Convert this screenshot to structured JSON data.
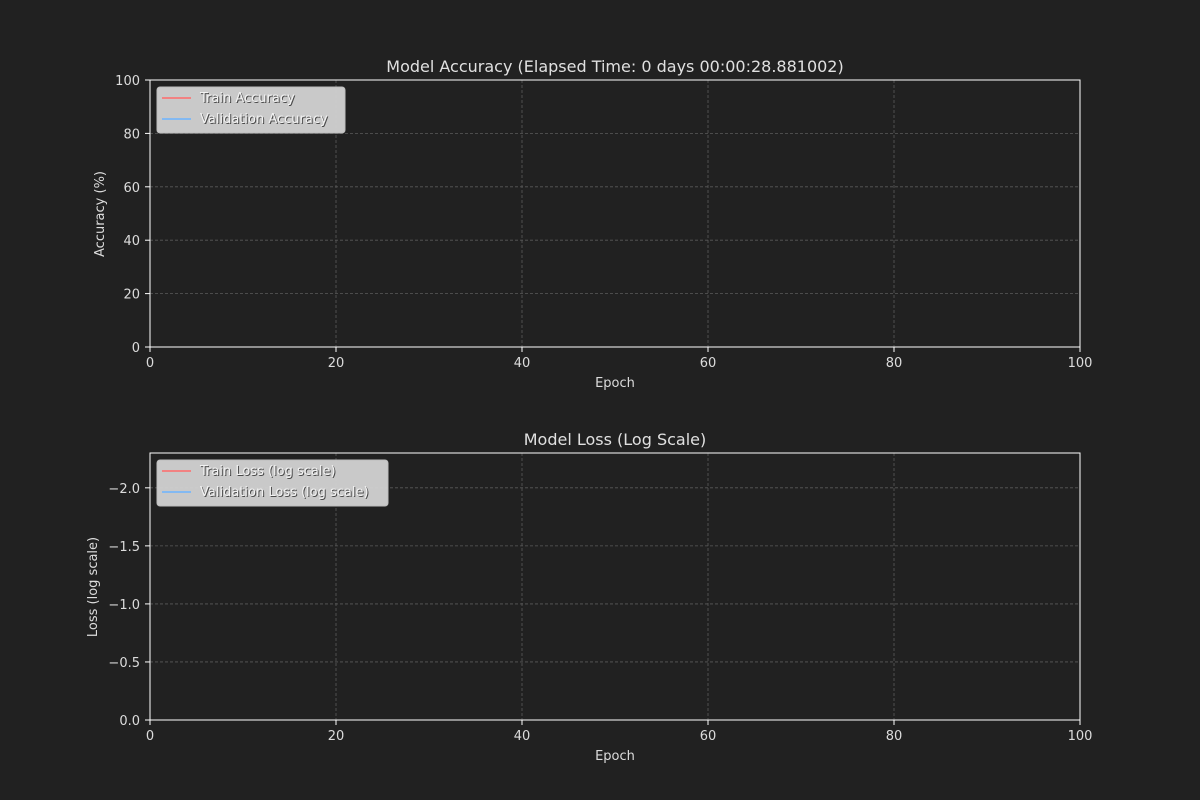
{
  "colors": {
    "background": "#212121",
    "axes_face": "#212121",
    "spine": "#ffffff",
    "grid": "#5a5a5a",
    "text": "#dcdcdc",
    "train": "#ff6b6b",
    "validation": "#6cb4ff",
    "legend_bg": "#d3d3d3"
  },
  "chart_data": [
    {
      "type": "line",
      "title": "Model Accuracy (Elapsed Time: 0 days 00:00:28.881002)",
      "xlabel": "Epoch",
      "ylabel": "Accuracy (%)",
      "xlim": [
        0,
        100
      ],
      "ylim": [
        0,
        100
      ],
      "xticks": [
        0,
        20,
        40,
        60,
        80,
        100
      ],
      "yticks": [
        0,
        20,
        40,
        60,
        80,
        100
      ],
      "xtick_labels": [
        "0",
        "20",
        "40",
        "60",
        "80",
        "100"
      ],
      "ytick_labels": [
        "0",
        "20",
        "40",
        "60",
        "80",
        "100"
      ],
      "grid": true,
      "legend_position": "upper-left",
      "series": [
        {
          "name": "Train Accuracy",
          "color": "#ff6b6b",
          "x": [],
          "y": []
        },
        {
          "name": "Validation Accuracy",
          "color": "#6cb4ff",
          "x": [],
          "y": []
        }
      ]
    },
    {
      "type": "line",
      "title": "Model Loss (Log Scale)",
      "xlabel": "Epoch",
      "ylabel": "Loss (log scale)",
      "xlim": [
        0,
        100
      ],
      "ylim": [
        0,
        -2.3
      ],
      "xticks": [
        0,
        20,
        40,
        60,
        80,
        100
      ],
      "yticks": [
        0,
        -0.5,
        -1.0,
        -1.5,
        -2.0
      ],
      "xtick_labels": [
        "0",
        "20",
        "40",
        "60",
        "80",
        "100"
      ],
      "ytick_labels": [
        "0.0",
        "−0.5",
        "−1.0",
        "−1.5",
        "−2.0"
      ],
      "grid": true,
      "legend_position": "upper-left",
      "series": [
        {
          "name": "Train Loss (log scale)",
          "color": "#ff6b6b",
          "x": [],
          "y": []
        },
        {
          "name": "Validation Loss (log scale)",
          "color": "#6cb4ff",
          "x": [],
          "y": []
        }
      ]
    }
  ]
}
